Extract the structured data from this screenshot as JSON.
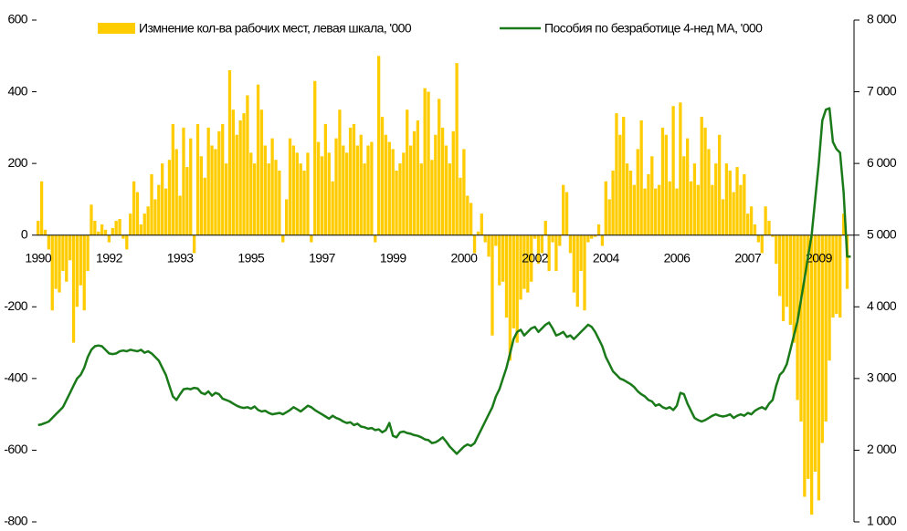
{
  "chart_data": {
    "type": "bar_line",
    "categories": [
      "1990",
      null,
      null,
      null,
      null,
      null,
      null,
      null,
      null,
      null,
      null,
      null,
      null,
      null,
      null,
      null,
      null,
      null,
      null,
      null,
      "1992",
      null,
      null,
      null,
      null,
      null,
      null,
      null,
      null,
      null,
      null,
      null,
      null,
      null,
      null,
      null,
      null,
      null,
      null,
      null,
      "1993",
      null,
      null,
      null,
      null,
      null,
      null,
      null,
      null,
      null,
      null,
      null,
      null,
      null,
      null,
      null,
      null,
      null,
      null,
      null,
      "1995",
      null,
      null,
      null,
      null,
      null,
      null,
      null,
      null,
      null,
      null,
      null,
      null,
      null,
      null,
      null,
      null,
      null,
      null,
      null,
      "1997",
      null,
      null,
      null,
      null,
      null,
      null,
      null,
      null,
      null,
      null,
      null,
      null,
      null,
      null,
      null,
      null,
      null,
      null,
      null,
      "1999",
      null,
      null,
      null,
      null,
      null,
      null,
      null,
      null,
      null,
      null,
      null,
      null,
      null,
      null,
      null,
      null,
      null,
      null,
      null,
      "2000",
      null,
      null,
      null,
      null,
      null,
      null,
      null,
      null,
      null,
      null,
      null,
      null,
      null,
      null,
      null,
      null,
      null,
      null,
      null,
      "2002",
      null,
      null,
      null,
      null,
      null,
      null,
      null,
      null,
      null,
      null,
      null,
      null,
      null,
      null,
      null,
      null,
      null,
      null,
      null,
      "2004",
      null,
      null,
      null,
      null,
      null,
      null,
      null,
      null,
      null,
      null,
      null,
      null,
      null,
      null,
      null,
      null,
      null,
      null,
      null,
      "2006",
      null,
      null,
      null,
      null,
      null,
      null,
      null,
      null,
      null,
      null,
      null,
      null,
      null,
      null,
      null,
      null,
      null,
      null,
      null,
      "2007",
      null,
      null,
      null,
      null,
      null,
      null,
      null,
      null,
      null,
      null,
      null,
      null,
      null,
      null,
      null,
      null,
      null,
      null,
      null,
      "2009",
      null,
      null,
      null,
      null,
      null,
      null,
      null,
      null,
      null
    ],
    "series": [
      {
        "name": "Измнение кол-ва рабочих мест, левая шкала, '000",
        "color": "#ffcc00",
        "kind": "bar",
        "values": [
          40,
          150,
          15,
          -40,
          -210,
          -150,
          -160,
          -100,
          -130,
          -70,
          -300,
          -200,
          -140,
          -210,
          -100,
          85,
          40,
          10,
          30,
          15,
          -20,
          20,
          40,
          45,
          -10,
          -40,
          60,
          150,
          120,
          30,
          60,
          80,
          170,
          100,
          140,
          200,
          130,
          210,
          310,
          240,
          110,
          300,
          190,
          270,
          -50,
          310,
          220,
          160,
          300,
          250,
          240,
          290,
          310,
          200,
          460,
          350,
          280,
          320,
          340,
          390,
          230,
          200,
          420,
          350,
          250,
          200,
          270,
          210,
          180,
          -20,
          100,
          270,
          250,
          230,
          200,
          180,
          230,
          -20,
          430,
          260,
          220,
          310,
          230,
          150,
          270,
          350,
          250,
          230,
          300,
          310,
          250,
          280,
          200,
          250,
          260,
          -20,
          500,
          330,
          280,
          260,
          240,
          180,
          200,
          230,
          350,
          250,
          290,
          320,
          200,
          410,
          400,
          210,
          280,
          380,
          300,
          250,
          200,
          290,
          480,
          160,
          240,
          110,
          90,
          -50,
          10,
          60,
          -20,
          -60,
          -280,
          -30,
          -140,
          -130,
          -230,
          -350,
          -260,
          -300,
          -180,
          -150,
          -160,
          -130,
          -10,
          -80,
          -50,
          40,
          -100,
          -20,
          -100,
          -30,
          140,
          120,
          -50,
          -160,
          -200,
          -100,
          -210,
          -20,
          -10,
          -5,
          30,
          -30,
          150,
          100,
          180,
          340,
          280,
          330,
          200,
          180,
          140,
          240,
          320,
          130,
          170,
          220,
          130,
          140,
          300,
          280,
          150,
          360,
          130,
          370,
          220,
          270,
          150,
          200,
          140,
          330,
          300,
          240,
          140,
          200,
          280,
          100,
          200,
          180,
          120,
          190,
          140,
          170,
          60,
          80,
          30,
          -20,
          -50,
          80,
          40,
          -5,
          -80,
          -170,
          -240,
          -200,
          -250,
          -300,
          -460,
          -520,
          -730,
          -680,
          -780,
          -660,
          -740,
          -580,
          -520,
          -350,
          -230,
          -220,
          -230,
          60,
          -150,
          0
        ]
      },
      {
        "name": "Пособия по безработице 4-нед MA, '000",
        "color": "#1a7a1a",
        "kind": "line",
        "axis": "y2",
        "values": [
          2350,
          2360,
          2380,
          2400,
          2450,
          2500,
          2550,
          2600,
          2700,
          2800,
          2900,
          3000,
          3050,
          3150,
          3300,
          3400,
          3450,
          3460,
          3450,
          3400,
          3350,
          3340,
          3350,
          3380,
          3390,
          3380,
          3400,
          3390,
          3380,
          3400,
          3360,
          3380,
          3350,
          3300,
          3250,
          3150,
          3050,
          2900,
          2750,
          2700,
          2780,
          2850,
          2860,
          2850,
          2870,
          2860,
          2800,
          2780,
          2820,
          2760,
          2800,
          2780,
          2720,
          2700,
          2680,
          2650,
          2620,
          2600,
          2590,
          2600,
          2580,
          2610,
          2560,
          2540,
          2550,
          2520,
          2500,
          2510,
          2520,
          2500,
          2530,
          2560,
          2600,
          2570,
          2540,
          2580,
          2620,
          2600,
          2560,
          2530,
          2500,
          2470,
          2440,
          2480,
          2450,
          2430,
          2400,
          2380,
          2390,
          2350,
          2370,
          2330,
          2320,
          2300,
          2310,
          2280,
          2290,
          2250,
          2280,
          2380,
          2200,
          2180,
          2250,
          2260,
          2240,
          2230,
          2210,
          2200,
          2180,
          2150,
          2140,
          2100,
          2110,
          2140,
          2180,
          2120,
          2050,
          2000,
          1950,
          2000,
          2050,
          2080,
          2060,
          2100,
          2200,
          2300,
          2400,
          2500,
          2600,
          2750,
          2850,
          3000,
          3150,
          3350,
          3550,
          3650,
          3680,
          3600,
          3650,
          3700,
          3720,
          3650,
          3700,
          3750,
          3780,
          3700,
          3600,
          3620,
          3650,
          3580,
          3600,
          3550,
          3600,
          3650,
          3700,
          3750,
          3720,
          3650,
          3550,
          3450,
          3300,
          3200,
          3100,
          3050,
          3000,
          2980,
          2950,
          2920,
          2880,
          2820,
          2780,
          2750,
          2700,
          2680,
          2620,
          2640,
          2600,
          2580,
          2600,
          2560,
          2620,
          2800,
          2780,
          2650,
          2550,
          2450,
          2420,
          2400,
          2420,
          2450,
          2480,
          2500,
          2480,
          2470,
          2480,
          2500,
          2450,
          2480,
          2500,
          2480,
          2520,
          2500,
          2550,
          2580,
          2600,
          2570,
          2650,
          2700,
          2900,
          3050,
          3100,
          3200,
          3400,
          3600,
          3800,
          4100,
          4400,
          4700,
          5000,
          5500,
          6000,
          6600,
          6750,
          6770,
          6300,
          6200,
          6150,
          5600,
          4700,
          4700
        ]
      }
    ],
    "ylim": [
      -800,
      600
    ],
    "yticks": [
      -800,
      -600,
      -400,
      -200,
      0,
      200,
      400,
      600
    ],
    "y2lim": [
      1000,
      8000
    ],
    "y2ticks": [
      {
        "value": 1000,
        "label": "1 000"
      },
      {
        "value": 2000,
        "label": "2 000"
      },
      {
        "value": 3000,
        "label": "3 000"
      },
      {
        "value": 4000,
        "label": "4 000"
      },
      {
        "value": 5000,
        "label": "5 000"
      },
      {
        "value": 6000,
        "label": "6 000"
      },
      {
        "value": 7000,
        "label": "7 000"
      },
      {
        "value": 8000,
        "label": "8 000"
      }
    ],
    "legend": "top"
  }
}
